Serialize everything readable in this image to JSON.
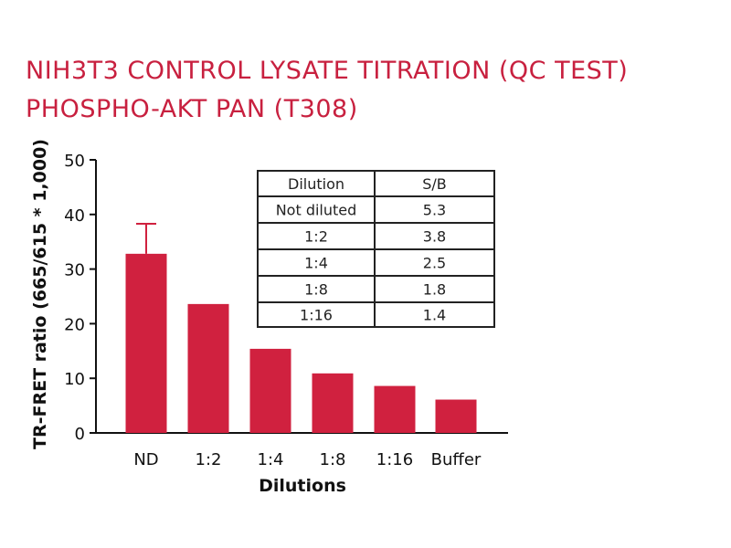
{
  "title_line1": "NIH3T3 CONTROL LYSATE TITRATION (QC TEST)",
  "title_line2": "PHOSPHO-AKT PAN (T308)",
  "colors": {
    "bar": "#d0213f",
    "axis": "#111111",
    "title": "#c8203f"
  },
  "chart_data": {
    "type": "bar",
    "title": "NIH3T3 CONTROL LYSATE TITRATION (QC TEST) PHOSPHO-AKT PAN (T308)",
    "categories": [
      "ND",
      "1:2",
      "1:4",
      "1:8",
      "1:16",
      "Buffer"
    ],
    "values": [
      32.8,
      23.6,
      15.4,
      10.9,
      8.6,
      6.1
    ],
    "error_bars": [
      5.5,
      0,
      0,
      0,
      0,
      0
    ],
    "xlabel": "Dilutions",
    "ylabel": "TR-FRET ratio (665/615 * 1,000)",
    "ylim": [
      0,
      50
    ],
    "yticks": [
      0,
      10,
      20,
      30,
      40,
      50
    ],
    "grid": false,
    "inset_table": {
      "headers": [
        "Dilution",
        "S/B"
      ],
      "rows": [
        [
          "Not diluted",
          "5.3"
        ],
        [
          "1:2",
          "3.8"
        ],
        [
          "1:4",
          "2.5"
        ],
        [
          "1:8",
          "1.8"
        ],
        [
          "1:16",
          "1.4"
        ]
      ]
    }
  }
}
